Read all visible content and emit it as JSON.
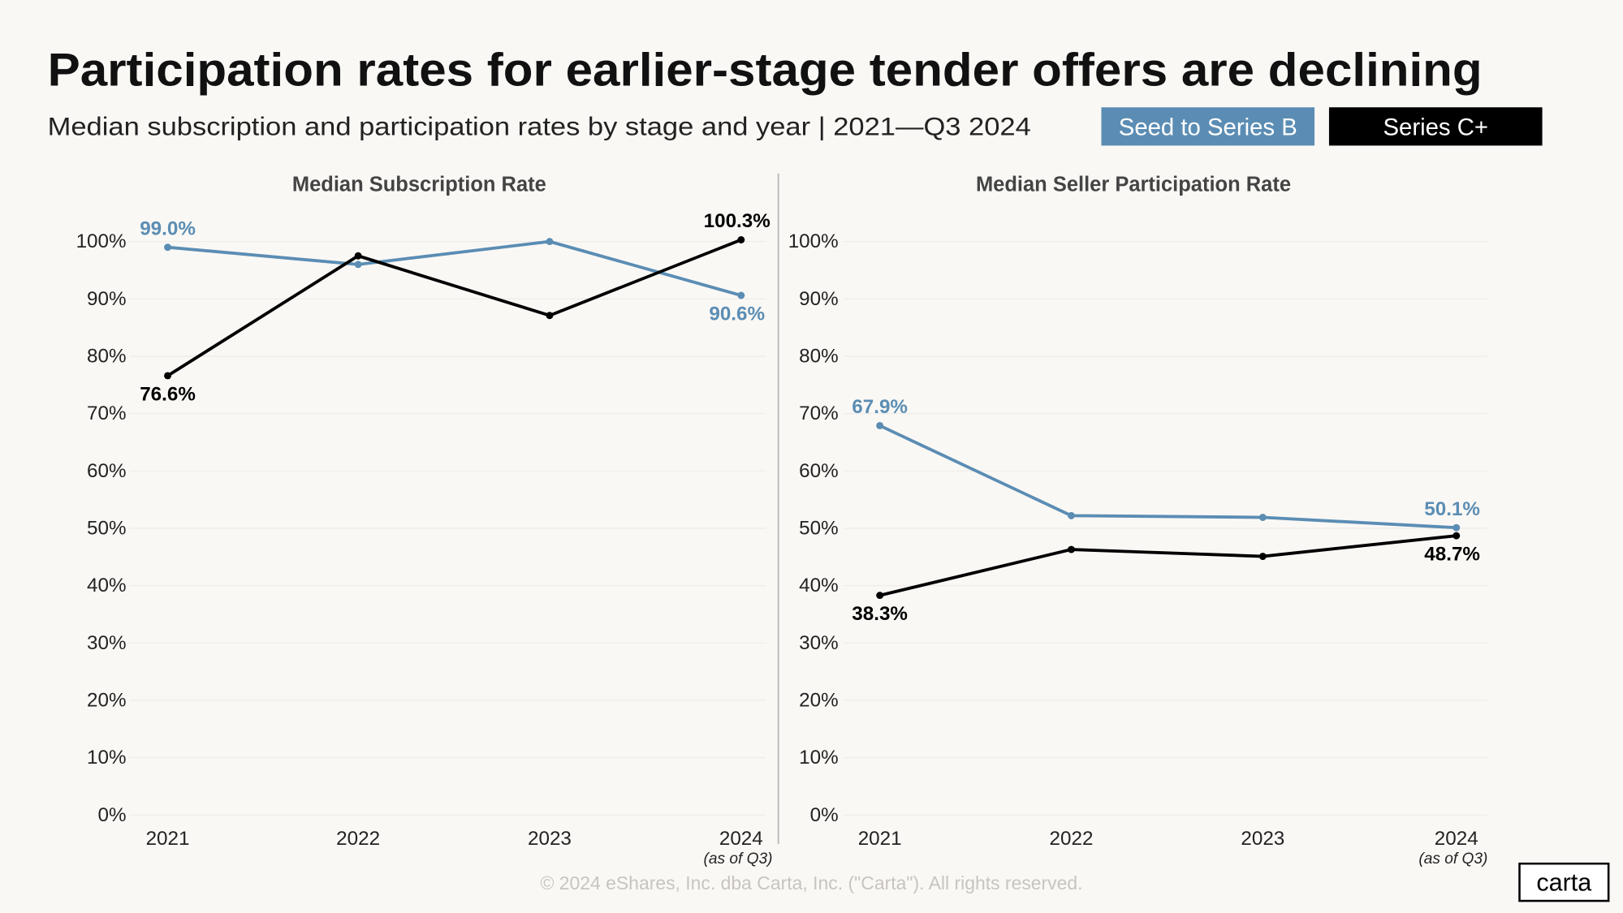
{
  "title": "Participation rates for earlier-stage tender offers are declining",
  "subtitle": "Median subscription and participation rates by stage and year | 2021—Q3 2024",
  "footer": "© 2024 eShares, Inc. dba Carta, Inc. (\"Carta\"). All rights reserved.",
  "logo": "carta",
  "chart_data": [
    {
      "type": "line",
      "title": "Median Subscription Rate",
      "categories": [
        "2021",
        "2022",
        "2023",
        "2024"
      ],
      "x_note": "(as of Q3)",
      "ylim": [
        0,
        105
      ],
      "yticks": [
        {
          "value": 0,
          "label": "0%"
        },
        {
          "value": 10,
          "label": "10%"
        },
        {
          "value": 20,
          "label": "20%"
        },
        {
          "value": 30,
          "label": "30%"
        },
        {
          "value": 40,
          "label": "40%"
        },
        {
          "value": 50,
          "label": "50%"
        },
        {
          "value": 60,
          "label": "60%"
        },
        {
          "value": 70,
          "label": "70%"
        },
        {
          "value": 80,
          "label": "80%"
        },
        {
          "value": 90,
          "label": "90%"
        },
        {
          "value": 100,
          "label": "100%"
        }
      ],
      "grid": true,
      "series": [
        {
          "name": "Seed to Series B",
          "color": "#5b8db4",
          "values": [
            99.0,
            96.0,
            100.0,
            90.6
          ],
          "value_labels": [
            "99.0%",
            null,
            null,
            "90.6%"
          ]
        },
        {
          "name": "Series C+",
          "color": "#000000",
          "values": [
            76.6,
            97.5,
            87.1,
            100.3
          ],
          "value_labels": [
            "76.6%",
            null,
            null,
            "100.3%"
          ]
        }
      ]
    },
    {
      "type": "line",
      "title": "Median Seller Participation Rate",
      "categories": [
        "2021",
        "2022",
        "2023",
        "2024"
      ],
      "x_note": "(as of Q3)",
      "ylim": [
        0,
        105
      ],
      "yticks": [
        {
          "value": 0,
          "label": "0%"
        },
        {
          "value": 10,
          "label": "10%"
        },
        {
          "value": 20,
          "label": "20%"
        },
        {
          "value": 30,
          "label": "30%"
        },
        {
          "value": 40,
          "label": "40%"
        },
        {
          "value": 50,
          "label": "50%"
        },
        {
          "value": 60,
          "label": "60%"
        },
        {
          "value": 70,
          "label": "70%"
        },
        {
          "value": 80,
          "label": "80%"
        },
        {
          "value": 90,
          "label": "90%"
        },
        {
          "value": 100,
          "label": "100%"
        }
      ],
      "grid": true,
      "series": [
        {
          "name": "Seed to Series B",
          "color": "#5b8db4",
          "values": [
            67.9,
            52.2,
            51.9,
            50.1
          ],
          "value_labels": [
            "67.9%",
            null,
            null,
            "50.1%"
          ]
        },
        {
          "name": "Series C+",
          "color": "#000000",
          "values": [
            38.3,
            46.3,
            45.1,
            48.7
          ],
          "value_labels": [
            "38.3%",
            null,
            null,
            "48.7%"
          ]
        }
      ]
    }
  ]
}
